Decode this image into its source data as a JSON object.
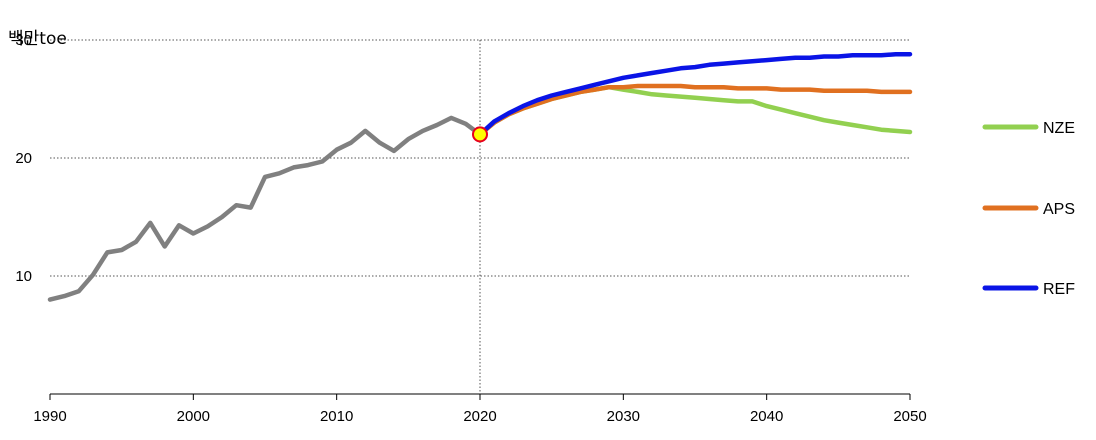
{
  "chart_data": {
    "type": "line",
    "unit_label": "백만toe",
    "xlim": [
      1990,
      2050
    ],
    "ylim": [
      0,
      30
    ],
    "x_ticks": [
      1990,
      2000,
      2010,
      2020,
      2030,
      2040,
      2050
    ],
    "y_ticks": [
      10,
      20,
      30
    ],
    "y_tick_labels": [
      "10",
      "20",
      "30"
    ],
    "x_tick_labels": [
      "1990",
      "2000",
      "2010",
      "2020",
      "2030",
      "2040",
      "2050"
    ],
    "grid": "horizontal dotted",
    "reference_year": 2020,
    "marker": {
      "x": 2020,
      "y": 22.0
    },
    "legend_position": "right",
    "series": [
      {
        "color": "#808080",
        "x": [
          1990,
          1991,
          1992,
          1993,
          1994,
          1995,
          1996,
          1997,
          1998,
          1999,
          2000,
          2001,
          2002,
          2003,
          2004,
          2005,
          2006,
          2007,
          2008,
          2009,
          2010,
          2011,
          2012,
          2013,
          2014,
          2015,
          2016,
          2017,
          2018,
          2019,
          2020
        ],
        "y": [
          8.0,
          8.3,
          8.7,
          10.1,
          12.0,
          12.2,
          12.9,
          14.5,
          12.5,
          14.3,
          13.6,
          14.2,
          15.0,
          16.0,
          15.8,
          18.4,
          18.7,
          19.2,
          19.4,
          19.7,
          20.7,
          21.3,
          22.3,
          21.3,
          20.6,
          21.6,
          22.3,
          22.8,
          23.4,
          22.9,
          22.0
        ]
      },
      {
        "name": "NZE",
        "color": "#92d050",
        "x": [
          2020,
          2021,
          2022,
          2023,
          2024,
          2025,
          2026,
          2027,
          2028,
          2029,
          2030,
          2031,
          2032,
          2033,
          2034,
          2035,
          2036,
          2037,
          2038,
          2039,
          2040,
          2041,
          2042,
          2043,
          2044,
          2045,
          2046,
          2047,
          2048,
          2049,
          2050
        ],
        "y": [
          22.0,
          23.0,
          23.7,
          24.2,
          24.6,
          25.0,
          25.3,
          25.6,
          25.8,
          26.0,
          25.8,
          25.6,
          25.4,
          25.3,
          25.2,
          25.1,
          25.0,
          24.9,
          24.8,
          24.8,
          24.4,
          24.1,
          23.8,
          23.5,
          23.2,
          23.0,
          22.8,
          22.6,
          22.4,
          22.3,
          22.2
        ]
      },
      {
        "name": "APS",
        "color": "#e07020",
        "x": [
          2020,
          2021,
          2022,
          2023,
          2024,
          2025,
          2026,
          2027,
          2028,
          2029,
          2030,
          2031,
          2032,
          2033,
          2034,
          2035,
          2036,
          2037,
          2038,
          2039,
          2040,
          2041,
          2042,
          2043,
          2044,
          2045,
          2046,
          2047,
          2048,
          2049,
          2050
        ],
        "y": [
          22.0,
          23.0,
          23.7,
          24.2,
          24.6,
          25.0,
          25.3,
          25.6,
          25.8,
          26.0,
          26.0,
          26.1,
          26.1,
          26.1,
          26.1,
          26.0,
          26.0,
          26.0,
          25.9,
          25.9,
          25.9,
          25.8,
          25.8,
          25.8,
          25.7,
          25.7,
          25.7,
          25.7,
          25.6,
          25.6,
          25.6
        ]
      },
      {
        "name": "REF",
        "color": "#0a14e6",
        "x": [
          2020,
          2021,
          2022,
          2023,
          2024,
          2025,
          2026,
          2027,
          2028,
          2029,
          2030,
          2031,
          2032,
          2033,
          2034,
          2035,
          2036,
          2037,
          2038,
          2039,
          2040,
          2041,
          2042,
          2043,
          2044,
          2045,
          2046,
          2047,
          2048,
          2049,
          2050
        ],
        "y": [
          22.0,
          23.1,
          23.8,
          24.4,
          24.9,
          25.3,
          25.6,
          25.9,
          26.2,
          26.5,
          26.8,
          27.0,
          27.2,
          27.4,
          27.6,
          27.7,
          27.9,
          28.0,
          28.1,
          28.2,
          28.3,
          28.4,
          28.5,
          28.5,
          28.6,
          28.6,
          28.7,
          28.7,
          28.7,
          28.8,
          28.8
        ]
      }
    ]
  }
}
